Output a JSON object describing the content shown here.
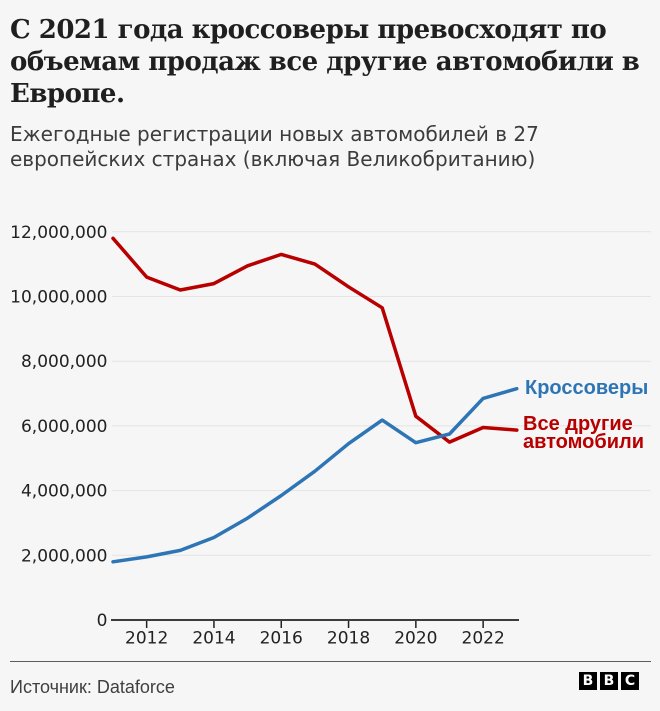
{
  "title_lines": [
    "С 2021 года кроссоверы превосходят по",
    "объемам продаж все другие автомобили в",
    "Европе."
  ],
  "subtitle_lines": [
    "Ежегодные регистрации новых автомобилей в 27",
    "европейских странах (включая Великобританию)"
  ],
  "legend": {
    "crossovers": "Кроссоверы",
    "others_line1": "Все другие",
    "others_line2": "автомобили"
  },
  "footer": {
    "source": "Источник: Dataforce",
    "logo_letters": [
      "B",
      "B",
      "C"
    ]
  },
  "colors": {
    "crossovers": "#2e75b5",
    "others": "#b80000",
    "axis": "#222222",
    "grid": "#e4e4e4",
    "text": "#222222"
  },
  "chart_data": {
    "type": "line",
    "x": [
      2011,
      2012,
      2013,
      2014,
      2015,
      2016,
      2017,
      2018,
      2019,
      2020,
      2021,
      2022,
      2023
    ],
    "series": [
      {
        "name": "Кроссоверы",
        "color": "#2e75b5",
        "values": [
          1800000,
          1950000,
          2150000,
          2550000,
          3150000,
          3850000,
          4600000,
          5450000,
          6180000,
          5480000,
          5750000,
          6850000,
          7150000
        ]
      },
      {
        "name": "Все другие автомобили",
        "color": "#b80000",
        "values": [
          11800000,
          10600000,
          10200000,
          10400000,
          10950000,
          11300000,
          11000000,
          10300000,
          9650000,
          6300000,
          5500000,
          5950000,
          5870000
        ]
      }
    ],
    "ylim": [
      0,
      12000000
    ],
    "ytick_step": 2000000,
    "xticks": [
      2012,
      2014,
      2016,
      2018,
      2020,
      2022
    ],
    "grid": true,
    "legend_position": "right-end"
  }
}
